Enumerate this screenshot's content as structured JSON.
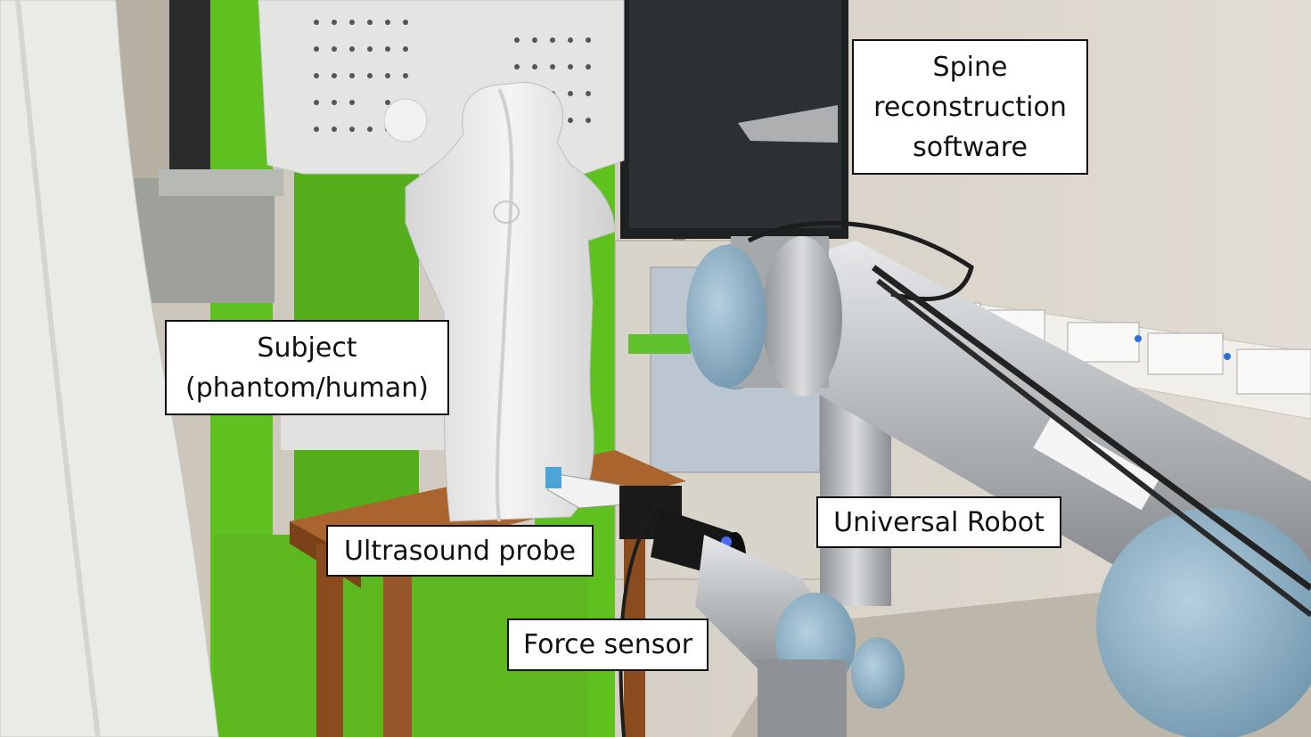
{
  "labels": {
    "spine": [
      "Spine",
      "reconstruction",
      "software"
    ],
    "subject": [
      "Subject",
      "(phantom/human)"
    ],
    "probe": "Ultrasound probe",
    "robot": "Universal Robot",
    "force": "Force sensor"
  },
  "colors": {
    "wall": "#d8d3ca",
    "scanner_green": "#5fc11f",
    "phantom_white": "#ececec",
    "robot_silver": "#b9bcbf",
    "robot_joint_blue": "#8fb3c9",
    "table_wood": "#9a5a2a",
    "monitor_black": "#1d2122"
  },
  "icons": [
    "phantom-torso-icon",
    "robot-arm-icon",
    "monitor-icon"
  ]
}
